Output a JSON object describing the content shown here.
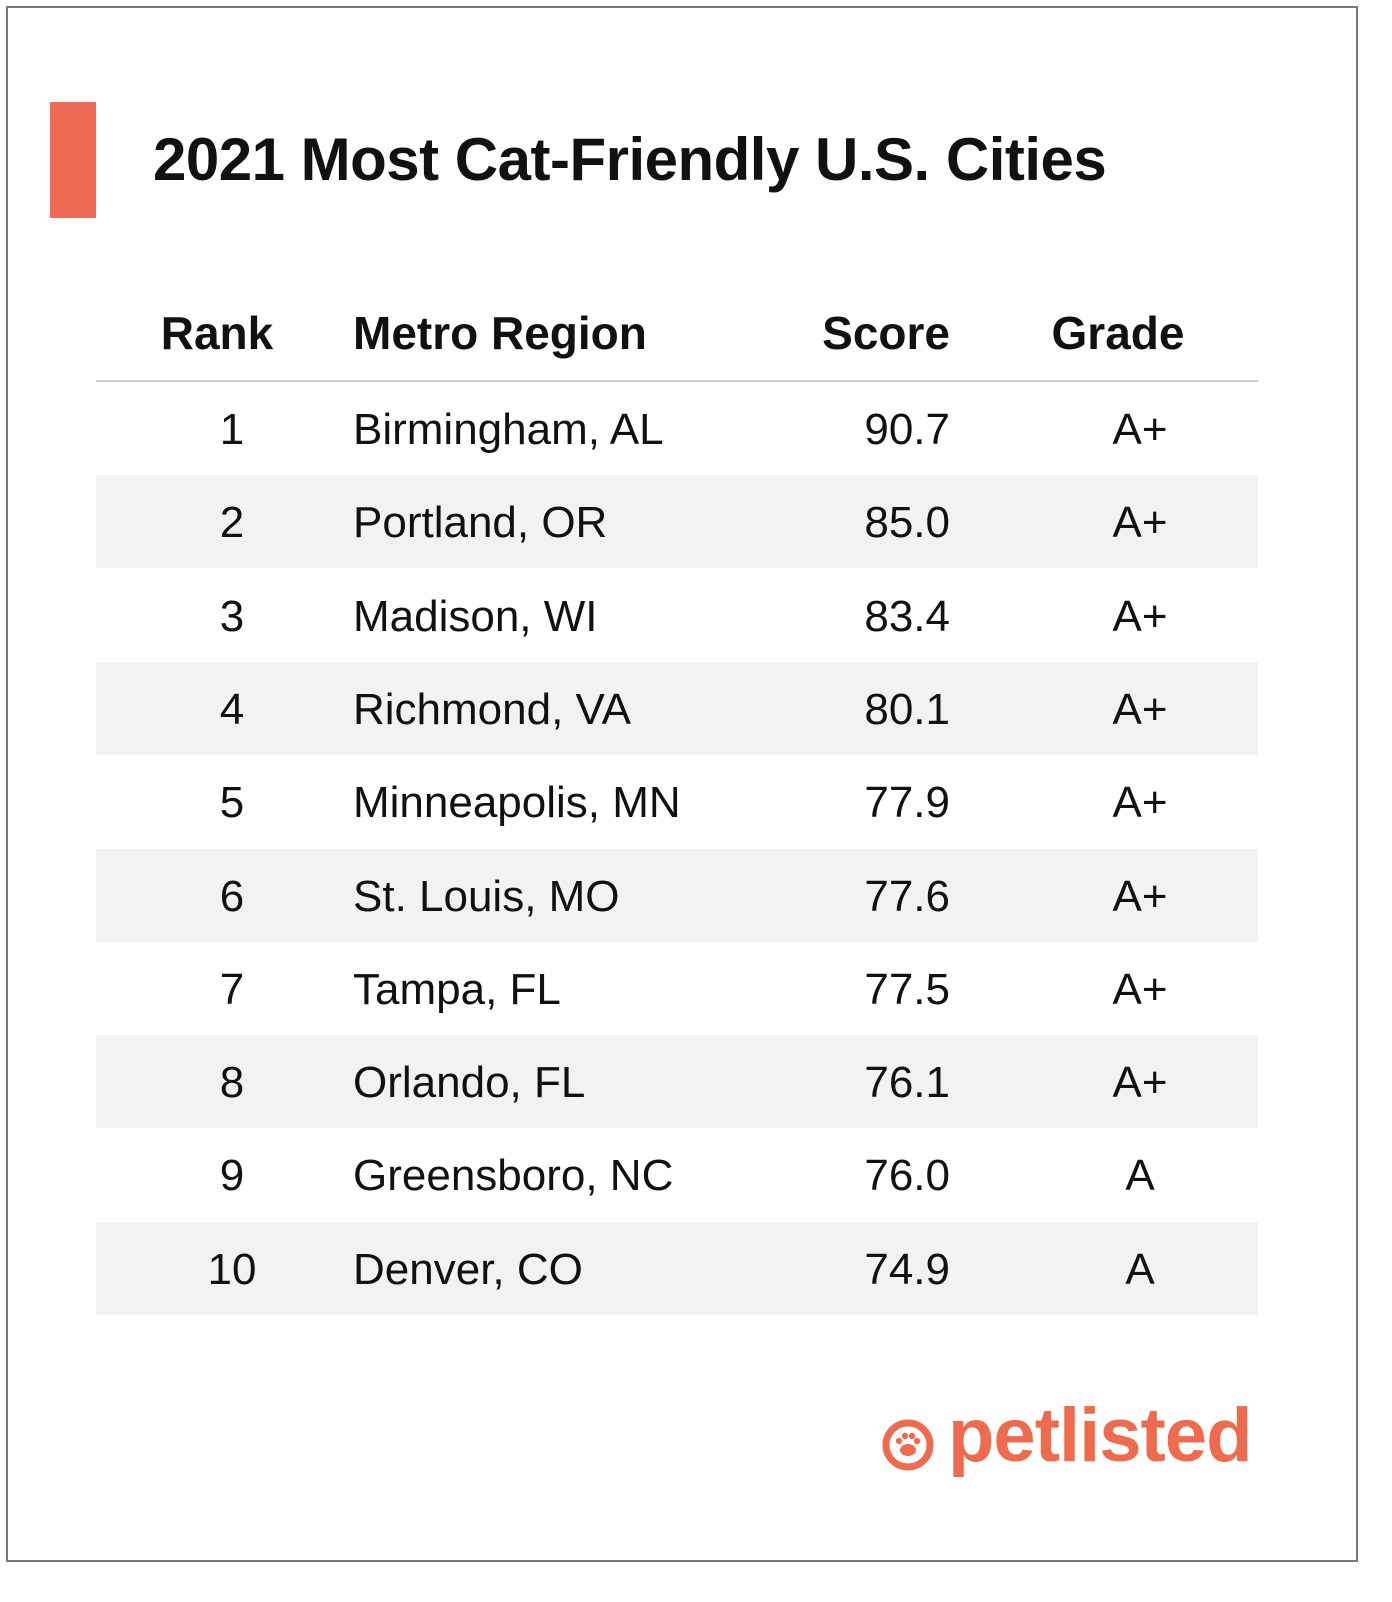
{
  "header": {
    "title": "2021 Most Cat-Friendly U.S. Cities"
  },
  "table": {
    "columns": [
      "Rank",
      "Metro Region",
      "Score",
      "Grade"
    ],
    "rows": [
      [
        "1",
        "Birmingham, AL",
        "90.7",
        "A+"
      ],
      [
        "2",
        "Portland, OR",
        "85.0",
        "A+"
      ],
      [
        "3",
        "Madison, WI",
        "83.4",
        "A+"
      ],
      [
        "4",
        "Richmond, VA",
        "80.1",
        "A+"
      ],
      [
        "5",
        "Minneapolis, MN",
        "77.9",
        "A+"
      ],
      [
        "6",
        "St. Louis, MO",
        "77.6",
        "A+"
      ],
      [
        "7",
        "Tampa, FL",
        "77.5",
        "A+"
      ],
      [
        "8",
        "Orlando, FL",
        "76.1",
        "A+"
      ],
      [
        "9",
        "Greensboro, NC",
        "76.0",
        "A"
      ],
      [
        "10",
        "Denver, CO",
        "74.9",
        "A"
      ]
    ]
  },
  "footer": {
    "brand": "petlisted"
  }
}
